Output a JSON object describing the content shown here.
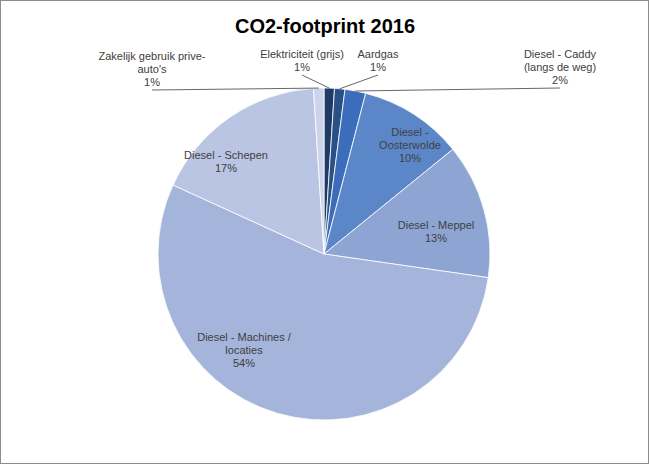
{
  "chart_data": {
    "type": "pie",
    "title": "CO2-footprint 2016",
    "categories": [
      "Elektriciteit (grijs)",
      "Aardgas",
      "Diesel - Caddy (langs de weg)",
      "Diesel - Oosterwolde",
      "Diesel - Meppel",
      "Diesel - Machines / locaties",
      "Diesel - Schepen",
      "Zakelijk gebruik prive-auto's"
    ],
    "values": [
      1,
      1,
      2,
      10,
      13,
      54,
      17,
      1
    ],
    "value_labels": [
      "1%",
      "1%",
      "2%",
      "10%",
      "13%",
      "54%",
      "17%",
      "1%"
    ],
    "colors": [
      "#1f3a64",
      "#2b5087",
      "#3b6dbb",
      "#5b87c9",
      "#8ea5d4",
      "#a4b4db",
      "#b9c5e3",
      "#cbd4ea"
    ],
    "data_labels": true
  }
}
